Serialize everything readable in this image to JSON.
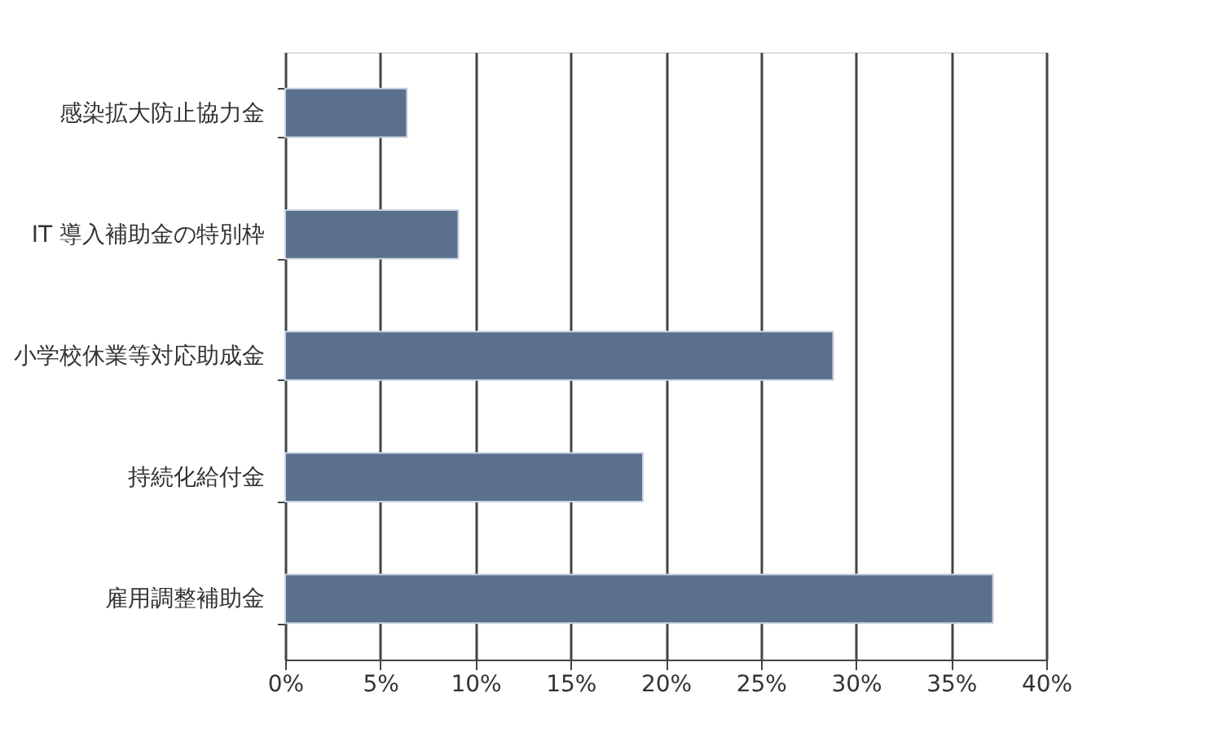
{
  "chart_data": {
    "type": "bar",
    "orientation": "horizontal",
    "categories": [
      "感染拡大防止協力金",
      "IT 導入補助金の特別枠",
      "小学校休業等対応助成金",
      "持続化給付金",
      "雇用調整補助金"
    ],
    "values": [
      6.4,
      9.1,
      28.8,
      18.8,
      37.2
    ],
    "color": "#5a708c",
    "xlim": [
      0,
      40
    ],
    "xticks": [
      {
        "value": 0,
        "label": "0%"
      },
      {
        "value": 5,
        "label": "5%"
      },
      {
        "value": 10,
        "label": "10%"
      },
      {
        "value": 15,
        "label": "15%"
      },
      {
        "value": 20,
        "label": "20%"
      },
      {
        "value": 25,
        "label": "25%"
      },
      {
        "value": 30,
        "label": "30%"
      },
      {
        "value": 35,
        "label": "35%"
      },
      {
        "value": 40,
        "label": "40%"
      }
    ],
    "grid": "x"
  }
}
